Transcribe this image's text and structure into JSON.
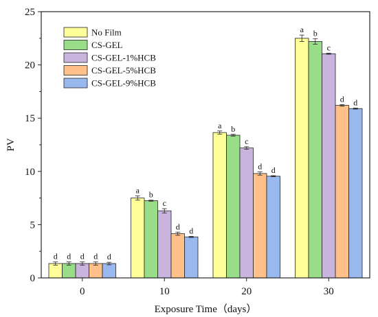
{
  "chart_data": {
    "type": "bar",
    "title": "",
    "xlabel": "Exposure Time（days）",
    "ylabel": "PV",
    "categories": [
      "0",
      "10",
      "20",
      "30"
    ],
    "ylim": [
      0,
      25
    ],
    "yticks": [
      0,
      5,
      10,
      15,
      20,
      25
    ],
    "grid": false,
    "legend_position": "top-left",
    "series": [
      {
        "name": "No Film",
        "color": "#ffff99",
        "values": [
          1.35,
          7.5,
          13.65,
          22.5
        ],
        "errors": [
          0.15,
          0.2,
          0.15,
          0.3
        ],
        "labels": [
          "d",
          "a",
          "a",
          "a"
        ]
      },
      {
        "name": "CS-GEL",
        "color": "#99dd88",
        "values": [
          1.35,
          7.25,
          13.4,
          22.2
        ],
        "errors": [
          0.15,
          0.05,
          0.08,
          0.25
        ],
        "labels": [
          "d",
          "b",
          "b",
          "b"
        ]
      },
      {
        "name": "CS-GEL-1%HCB",
        "color": "#c8b4dc",
        "values": [
          1.35,
          6.3,
          12.2,
          21.05
        ],
        "errors": [
          0.15,
          0.2,
          0.12,
          0.05
        ],
        "labels": [
          "d",
          "c",
          "c",
          "c"
        ]
      },
      {
        "name": "CS-GEL-5%HCB",
        "color": "#ffc08a",
        "values": [
          1.35,
          4.15,
          9.8,
          16.2
        ],
        "errors": [
          0.15,
          0.15,
          0.15,
          0.08
        ],
        "labels": [
          "d",
          "d",
          "d",
          "d"
        ]
      },
      {
        "name": "CS-GEL-9%HCB",
        "color": "#99b8ee",
        "values": [
          1.35,
          3.85,
          9.55,
          15.9
        ],
        "errors": [
          0.12,
          0.05,
          0.05,
          0.05
        ],
        "labels": [
          "d",
          "d",
          "d",
          "d"
        ]
      }
    ]
  }
}
